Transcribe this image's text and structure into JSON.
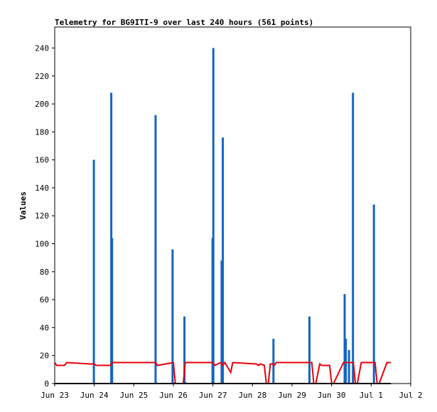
{
  "chart_data": {
    "type": "line",
    "title": "Telemetry for BG9ITI-9 over last 240 hours (561 points)",
    "xlabel": "",
    "ylabel": "Values",
    "x_tick_labels": [
      "Jun 23",
      "Jun 24",
      "Jun 25",
      "Jun 26",
      "Jun 27",
      "Jun 28",
      "Jun 29",
      "Jun 30",
      "Jul 1",
      "Jul 2"
    ],
    "xlim": [
      0,
      9
    ],
    "y_ticks": [
      0,
      20,
      40,
      60,
      80,
      100,
      120,
      140,
      160,
      180,
      200,
      220,
      240
    ],
    "ylim": [
      0,
      255
    ],
    "grid": false,
    "series": [
      {
        "color": "#1565c0",
        "style": "spikes",
        "points": [
          [
            0.99,
            160
          ],
          [
            1.43,
            208
          ],
          [
            1.45,
            104
          ],
          [
            2.55,
            192
          ],
          [
            2.98,
            96
          ],
          [
            2.99,
            1
          ],
          [
            3.02,
            0
          ],
          [
            3.28,
            48
          ],
          [
            3.3,
            1
          ],
          [
            3.99,
            104
          ],
          [
            4.01,
            240
          ],
          [
            4.22,
            88
          ],
          [
            4.25,
            176
          ],
          [
            5.53,
            32
          ],
          [
            6.44,
            48
          ],
          [
            7.33,
            64
          ],
          [
            7.36,
            32
          ],
          [
            7.44,
            24
          ],
          [
            7.54,
            208
          ],
          [
            8.07,
            128
          ]
        ]
      },
      {
        "color": "#e8000b",
        "style": "line",
        "points": [
          [
            0.0,
            15
          ],
          [
            0.05,
            13
          ],
          [
            0.25,
            13
          ],
          [
            0.3,
            15
          ],
          [
            0.9,
            14
          ],
          [
            1.0,
            14
          ],
          [
            1.05,
            13
          ],
          [
            1.4,
            13
          ],
          [
            1.45,
            15
          ],
          [
            2.55,
            15
          ],
          [
            2.6,
            13
          ],
          [
            3.0,
            15
          ],
          [
            3.05,
            0
          ],
          [
            3.1,
            0
          ],
          [
            3.25,
            0
          ],
          [
            3.3,
            15
          ],
          [
            4.0,
            15
          ],
          [
            4.05,
            13
          ],
          [
            4.2,
            15
          ],
          [
            4.25,
            13
          ],
          [
            4.3,
            15
          ],
          [
            4.45,
            8
          ],
          [
            4.5,
            15
          ],
          [
            5.1,
            14
          ],
          [
            5.15,
            13
          ],
          [
            5.2,
            14
          ],
          [
            5.3,
            13
          ],
          [
            5.35,
            0
          ],
          [
            5.4,
            0
          ],
          [
            5.45,
            14
          ],
          [
            5.5,
            14
          ],
          [
            5.55,
            13
          ],
          [
            5.6,
            15
          ],
          [
            6.5,
            15
          ],
          [
            6.55,
            0
          ],
          [
            6.6,
            0
          ],
          [
            6.7,
            14
          ],
          [
            6.75,
            13
          ],
          [
            6.95,
            13
          ],
          [
            7.0,
            0
          ],
          [
            7.05,
            0
          ],
          [
            7.3,
            15
          ],
          [
            7.55,
            15
          ],
          [
            7.6,
            0
          ],
          [
            7.65,
            0
          ],
          [
            7.75,
            15
          ],
          [
            8.1,
            15
          ],
          [
            8.15,
            0
          ],
          [
            8.2,
            0
          ],
          [
            8.4,
            15
          ],
          [
            8.5,
            15
          ]
        ]
      },
      {
        "color": "#000000",
        "style": "line",
        "points": [
          [
            0.0,
            0
          ],
          [
            8.5,
            0
          ]
        ]
      }
    ]
  }
}
